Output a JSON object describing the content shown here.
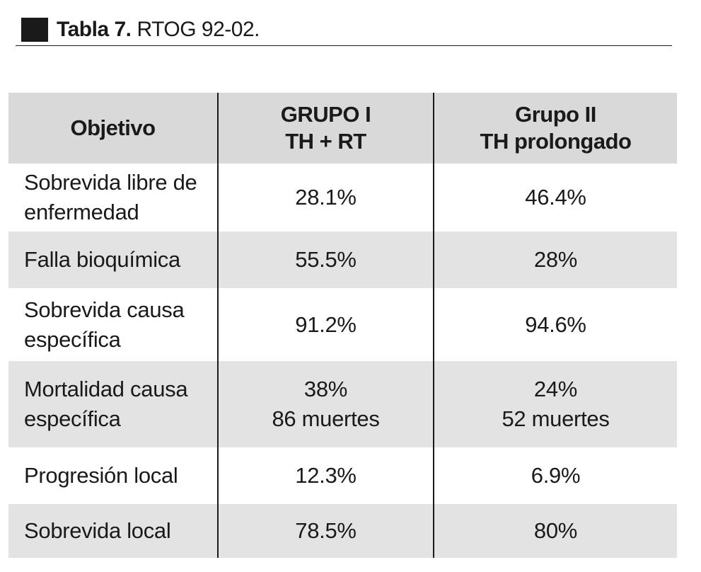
{
  "caption": {
    "label": "Tabla 7.",
    "text": "RTOG 92-02."
  },
  "table": {
    "headers": {
      "objective": "Objetivo",
      "group1_line1": "GRUPO I",
      "group1_line2": "TH + RT",
      "group2_line1": "Grupo II",
      "group2_line2": "TH prolongado"
    },
    "rows": [
      {
        "label_line1": "Sobrevida libre de",
        "label_line2": "enfermedad",
        "g1_line1": "28.1%",
        "g1_line2": "",
        "g2_line1": "46.4%",
        "g2_line2": ""
      },
      {
        "label_line1": "Falla bioquímica",
        "label_line2": "",
        "g1_line1": "55.5%",
        "g1_line2": "",
        "g2_line1": "28%",
        "g2_line2": ""
      },
      {
        "label_line1": "Sobrevida causa",
        "label_line2": "específica",
        "g1_line1": "91.2%",
        "g1_line2": "",
        "g2_line1": "94.6%",
        "g2_line2": ""
      },
      {
        "label_line1": "Mortalidad causa",
        "label_line2": "específica",
        "g1_line1": "38%",
        "g1_line2": "86 muertes",
        "g2_line1": "24%",
        "g2_line2": "52 muertes"
      },
      {
        "label_line1": "Progresión local",
        "label_line2": "",
        "g1_line1": "12.3%",
        "g1_line2": "",
        "g2_line1": "6.9%",
        "g2_line2": ""
      },
      {
        "label_line1": "Sobrevida local",
        "label_line2": "",
        "g1_line1": "78.5%",
        "g1_line2": "",
        "g2_line1": "80%",
        "g2_line2": ""
      }
    ]
  },
  "colors": {
    "header_fill": "#d9d9d9",
    "row_shade": "#e3e3e3",
    "text": "#1a1a1a"
  }
}
